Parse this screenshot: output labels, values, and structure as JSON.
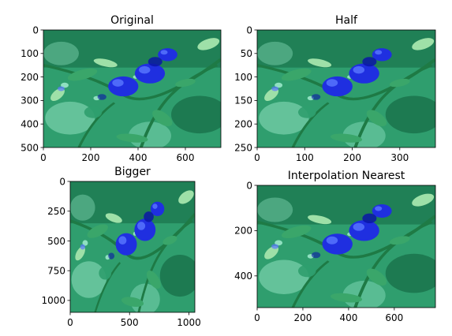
{
  "figure": {
    "background": "#ffffff",
    "palette": {
      "bg_dark": "#0f5c3a",
      "bg_mid": "#2f9e6e",
      "bg_light": "#8fe0c0",
      "leaf": "#3aa66a",
      "leaf_light": "#9ee0a8",
      "stem": "#1e7a45",
      "tomato": "#1f2fe0",
      "tomato_dark": "#0a16a6",
      "tomato_light": "#5a78ff"
    }
  },
  "chart_data": [
    {
      "type": "image",
      "title": "Original",
      "image_size": {
        "width": 750,
        "height": 500
      },
      "xlim": [
        0,
        750
      ],
      "ylim": [
        500,
        0
      ],
      "xticks": [
        0,
        200,
        400,
        600
      ],
      "yticks": [
        0,
        100,
        200,
        300,
        400,
        500
      ]
    },
    {
      "type": "image",
      "title": "Half",
      "image_size": {
        "width": 375,
        "height": 250
      },
      "xlim": [
        0,
        375
      ],
      "ylim": [
        250,
        0
      ],
      "xticks": [
        0,
        100,
        200,
        300
      ],
      "yticks": [
        0,
        50,
        100,
        150,
        200,
        250
      ]
    },
    {
      "type": "image",
      "title": "Bigger",
      "image_size": {
        "width": 1050,
        "height": 1100
      },
      "xlim": [
        0,
        1050
      ],
      "ylim": [
        1100,
        0
      ],
      "xticks": [
        0,
        500,
        1000
      ],
      "yticks": [
        0,
        250,
        500,
        750,
        1000
      ]
    },
    {
      "type": "image",
      "title": "Interpolation Nearest",
      "image_size": {
        "width": 780,
        "height": 540
      },
      "xlim": [
        0,
        780
      ],
      "ylim": [
        540,
        0
      ],
      "xticks": [
        0,
        200,
        400,
        600
      ],
      "yticks": [
        0,
        200,
        400
      ]
    }
  ]
}
